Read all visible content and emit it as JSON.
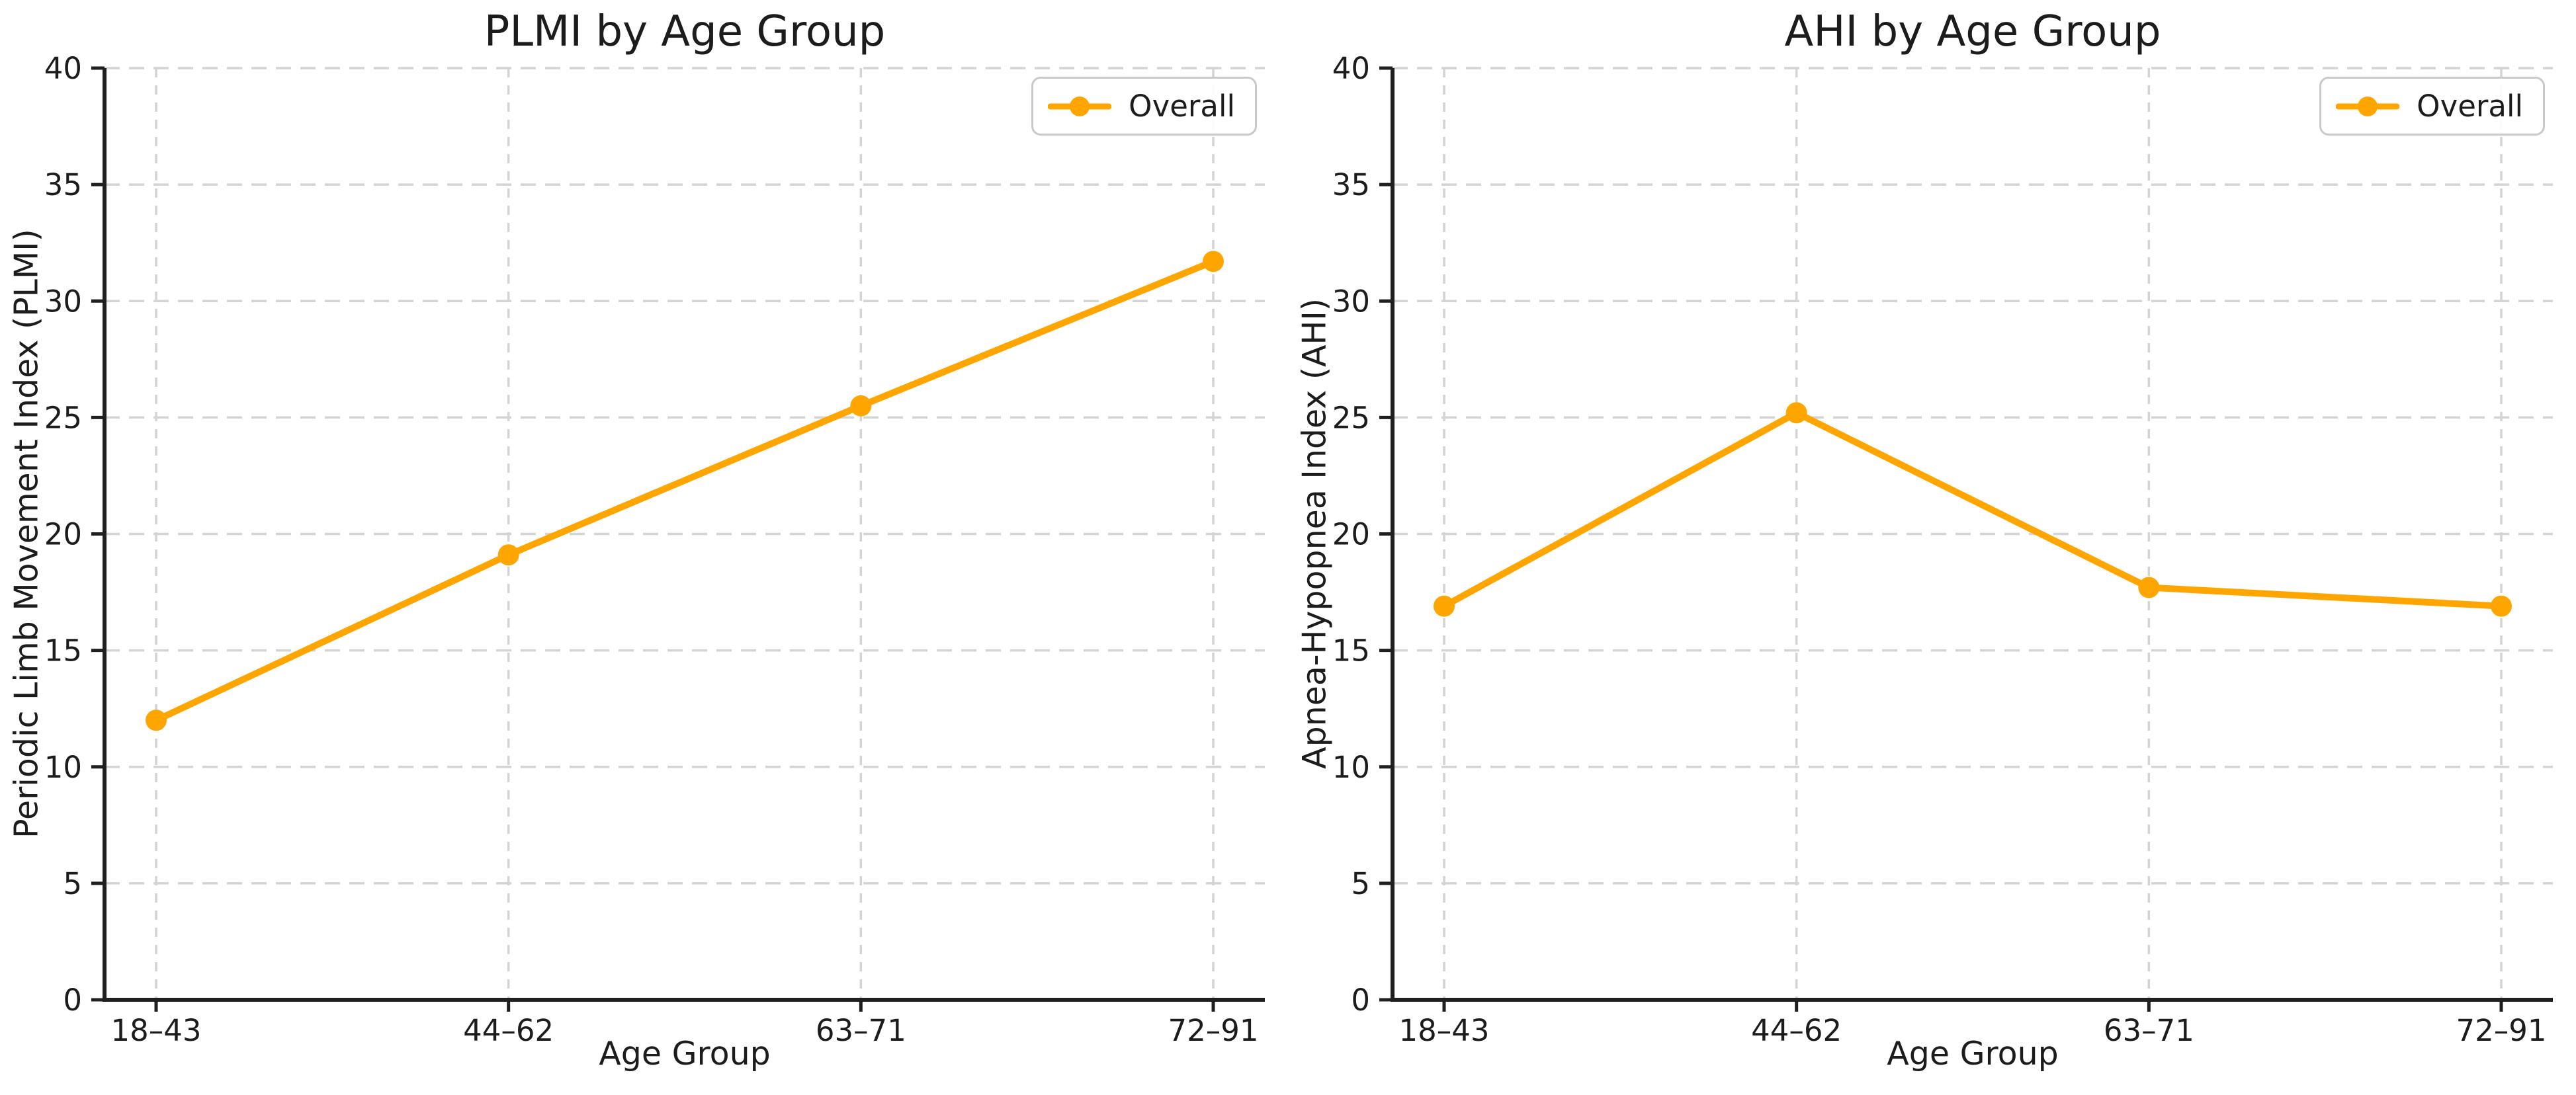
{
  "figure": {
    "background": "#ffffff",
    "layout": "two line charts side by side"
  },
  "colors": {
    "line": "#FFA500",
    "marker": "#FFA500",
    "grid": "#d4d4d4",
    "spine": "#1f1f1f",
    "text": "#1c1c1c",
    "legend_border": "#c9c9c9"
  },
  "chart_data": [
    {
      "type": "line",
      "title": "PLMI by Age Group",
      "xlabel": "Age Group",
      "ylabel": "Periodic Limb Movement Index (PLMI)",
      "categories": [
        "18–43",
        "44–62",
        "63–71",
        "72–91"
      ],
      "series": [
        {
          "name": "Overall",
          "values": [
            12.0,
            19.1,
            25.5,
            31.7
          ]
        }
      ],
      "ylim": [
        0,
        40
      ],
      "yticks": [
        0,
        5,
        10,
        15,
        20,
        25,
        30,
        35,
        40
      ],
      "grid": "dashed, horizontal and vertical",
      "legend_position": "upper right"
    },
    {
      "type": "line",
      "title": "AHI by Age Group",
      "xlabel": "Age Group",
      "ylabel": "Apnea-Hypopnea Index (AHI)",
      "categories": [
        "18–43",
        "44–62",
        "63–71",
        "72–91"
      ],
      "series": [
        {
          "name": "Overall",
          "values": [
            16.9,
            25.2,
            17.7,
            16.9
          ]
        }
      ],
      "ylim": [
        0,
        40
      ],
      "yticks": [
        0,
        5,
        10,
        15,
        20,
        25,
        30,
        35,
        40
      ],
      "grid": "dashed, horizontal and vertical",
      "legend_position": "upper right"
    }
  ]
}
